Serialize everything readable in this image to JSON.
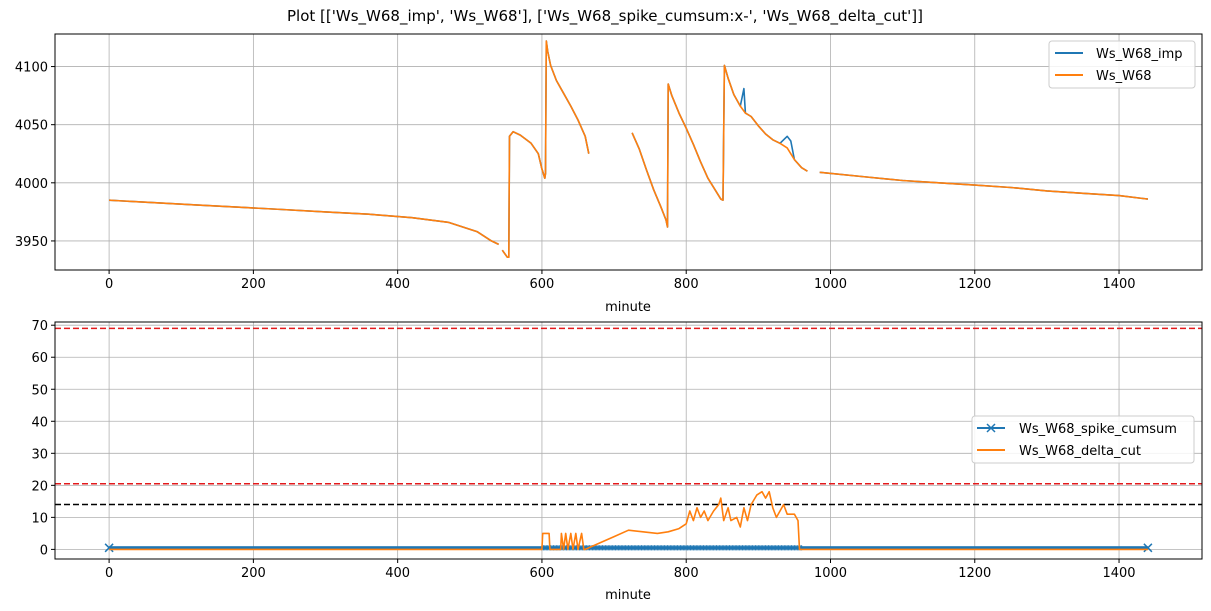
{
  "title": "Plot [['Ws_W68_imp', 'Ws_W68'], ['Ws_W68_spike_cumsum:x-', 'Ws_W68_delta_cut']]",
  "colors": {
    "blue": "#1f77b4",
    "orange": "#ff7f0e",
    "red": "#e31a1c",
    "black": "#000000",
    "grid": "#b0b0b0"
  },
  "chart_data": [
    {
      "type": "line",
      "xlabel": "minute",
      "ylabel": "",
      "xlim": [
        -75,
        1515
      ],
      "ylim": [
        3925,
        4128
      ],
      "grid": true,
      "legend": "top-right",
      "x_ticks": [
        0,
        200,
        400,
        600,
        800,
        1000,
        1200,
        1400
      ],
      "y_ticks": [
        3950,
        4000,
        4050,
        4100
      ],
      "series": [
        {
          "name": "Ws_W68_imp",
          "color": "#1f77b4",
          "segments": [
            [
              [
                0,
                3985
              ],
              [
                60,
                3983
              ],
              [
                120,
                3981
              ],
              [
                180,
                3979
              ],
              [
                240,
                3977
              ],
              [
                300,
                3975
              ],
              [
                360,
                3973
              ],
              [
                420,
                3970
              ],
              [
                470,
                3966
              ],
              [
                510,
                3958
              ],
              [
                530,
                3950
              ],
              [
                540,
                3947
              ]
            ],
            [
              [
                545,
                3942
              ],
              [
                552,
                3936
              ],
              [
                554,
                3936
              ],
              [
                555,
                4040
              ],
              [
                560,
                4044
              ],
              [
                570,
                4041
              ],
              [
                585,
                4034
              ],
              [
                595,
                4025
              ],
              [
                600,
                4012
              ],
              [
                604,
                4004
              ],
              [
                605,
                4008
              ],
              [
                606,
                4122
              ],
              [
                608,
                4113
              ],
              [
                612,
                4101
              ],
              [
                620,
                4088
              ],
              [
                630,
                4077
              ],
              [
                640,
                4066
              ],
              [
                650,
                4054
              ],
              [
                660,
                4040
              ],
              [
                665,
                4025
              ]
            ],
            [
              [
                725,
                4043
              ],
              [
                735,
                4029
              ],
              [
                745,
                4011
              ],
              [
                755,
                3994
              ],
              [
                765,
                3979
              ],
              [
                772,
                3968
              ],
              [
                774,
                3962
              ],
              [
                775,
                4085
              ],
              [
                780,
                4075
              ],
              [
                790,
                4060
              ],
              [
                800,
                4047
              ],
              [
                810,
                4033
              ],
              [
                820,
                4018
              ],
              [
                830,
                4004
              ],
              [
                840,
                3994
              ],
              [
                848,
                3986
              ],
              [
                851,
                3985
              ],
              [
                853,
                4101
              ],
              [
                858,
                4090
              ],
              [
                866,
                4076
              ],
              [
                875,
                4066
              ],
              [
                880,
                4081
              ],
              [
                882,
                4060
              ],
              [
                890,
                4057
              ],
              [
                900,
                4049
              ],
              [
                910,
                4042
              ],
              [
                920,
                4037
              ],
              [
                930,
                4034
              ],
              [
                940,
                4040
              ],
              [
                945,
                4036
              ],
              [
                950,
                4020
              ],
              [
                960,
                4013
              ],
              [
                968,
                4010
              ]
            ],
            [
              [
                985,
                4009
              ],
              [
                1050,
                4005
              ],
              [
                1100,
                4002
              ],
              [
                1150,
                4000
              ],
              [
                1200,
                3998
              ],
              [
                1250,
                3996
              ],
              [
                1300,
                3993
              ],
              [
                1350,
                3991
              ],
              [
                1400,
                3989
              ],
              [
                1440,
                3986
              ]
            ]
          ]
        },
        {
          "name": "Ws_W68",
          "color": "#ff7f0e",
          "segments": [
            [
              [
                0,
                3985
              ],
              [
                60,
                3983
              ],
              [
                120,
                3981
              ],
              [
                180,
                3979
              ],
              [
                240,
                3977
              ],
              [
                300,
                3975
              ],
              [
                360,
                3973
              ],
              [
                420,
                3970
              ],
              [
                470,
                3966
              ],
              [
                510,
                3958
              ],
              [
                530,
                3950
              ],
              [
                540,
                3947
              ]
            ],
            [
              [
                545,
                3942
              ],
              [
                552,
                3936
              ],
              [
                554,
                3936
              ],
              [
                555,
                4040
              ],
              [
                560,
                4044
              ],
              [
                570,
                4041
              ],
              [
                585,
                4034
              ],
              [
                595,
                4025
              ],
              [
                600,
                4012
              ],
              [
                604,
                4004
              ],
              [
                605,
                4008
              ],
              [
                606,
                4122
              ],
              [
                608,
                4113
              ],
              [
                612,
                4101
              ],
              [
                620,
                4088
              ],
              [
                630,
                4077
              ],
              [
                640,
                4066
              ],
              [
                650,
                4054
              ],
              [
                660,
                4040
              ],
              [
                665,
                4025
              ]
            ],
            [
              [
                725,
                4043
              ],
              [
                735,
                4029
              ],
              [
                745,
                4011
              ],
              [
                755,
                3994
              ],
              [
                765,
                3979
              ],
              [
                772,
                3968
              ],
              [
                774,
                3962
              ],
              [
                775,
                4085
              ],
              [
                780,
                4075
              ],
              [
                790,
                4060
              ],
              [
                800,
                4047
              ],
              [
                810,
                4033
              ],
              [
                820,
                4018
              ],
              [
                830,
                4004
              ],
              [
                840,
                3994
              ],
              [
                848,
                3986
              ],
              [
                851,
                3985
              ],
              [
                853,
                4101
              ],
              [
                858,
                4090
              ],
              [
                866,
                4076
              ],
              [
                875,
                4066
              ],
              [
                882,
                4060
              ],
              [
                890,
                4057
              ],
              [
                900,
                4049
              ],
              [
                910,
                4042
              ],
              [
                920,
                4037
              ],
              [
                930,
                4034
              ],
              [
                940,
                4030
              ],
              [
                950,
                4020
              ],
              [
                960,
                4013
              ],
              [
                968,
                4010
              ]
            ],
            [
              [
                985,
                4009
              ],
              [
                1050,
                4005
              ],
              [
                1100,
                4002
              ],
              [
                1150,
                4000
              ],
              [
                1200,
                3998
              ],
              [
                1250,
                3996
              ],
              [
                1300,
                3993
              ],
              [
                1350,
                3991
              ],
              [
                1400,
                3989
              ],
              [
                1440,
                3986
              ]
            ]
          ]
        }
      ]
    },
    {
      "type": "line",
      "xlabel": "minute",
      "ylabel": "",
      "xlim": [
        -75,
        1515
      ],
      "ylim": [
        -3,
        71
      ],
      "grid": true,
      "legend": "center-right",
      "x_ticks": [
        0,
        200,
        400,
        600,
        800,
        1000,
        1200,
        1400
      ],
      "y_ticks": [
        0,
        10,
        20,
        30,
        40,
        50,
        60,
        70
      ],
      "hlines": [
        {
          "y": 69,
          "color": "#e31a1c",
          "style": "dashed"
        },
        {
          "y": 20.5,
          "color": "#e31a1c",
          "style": "dashed"
        },
        {
          "y": 14,
          "color": "#000000",
          "style": "dashed"
        }
      ],
      "series": [
        {
          "name": "Ws_W68_spike_cumsum",
          "color": "#1f77b4",
          "marker": "x",
          "x_range": [
            0,
            1440
          ],
          "values": [
            0,
            1
          ],
          "note_dense": [
            600,
            960
          ]
        },
        {
          "name": "Ws_W68_delta_cut",
          "color": "#ff7f0e",
          "points": [
            [
              0,
              0
            ],
            [
              600,
              0
            ],
            [
              601,
              5
            ],
            [
              610,
              5
            ],
            [
              611,
              0
            ],
            [
              626,
              0
            ],
            [
              627,
              5
            ],
            [
              630,
              0
            ],
            [
              633,
              5
            ],
            [
              636,
              0
            ],
            [
              640,
              5
            ],
            [
              643,
              0
            ],
            [
              647,
              5
            ],
            [
              650,
              0
            ],
            [
              655,
              5
            ],
            [
              658,
              0
            ],
            [
              660,
              0
            ],
            [
              680,
              2
            ],
            [
              700,
              4
            ],
            [
              720,
              6
            ],
            [
              740,
              5.5
            ],
            [
              760,
              5
            ],
            [
              775,
              5.5
            ],
            [
              790,
              6.5
            ],
            [
              800,
              8
            ],
            [
              805,
              12
            ],
            [
              810,
              9
            ],
            [
              815,
              13
            ],
            [
              820,
              10
            ],
            [
              825,
              12
            ],
            [
              830,
              9
            ],
            [
              838,
              12
            ],
            [
              845,
              14
            ],
            [
              848,
              16
            ],
            [
              852,
              9
            ],
            [
              858,
              13
            ],
            [
              862,
              9
            ],
            [
              870,
              10
            ],
            [
              875,
              7
            ],
            [
              880,
              13
            ],
            [
              885,
              9
            ],
            [
              890,
              14
            ],
            [
              898,
              17
            ],
            [
              905,
              18
            ],
            [
              910,
              16
            ],
            [
              915,
              18
            ],
            [
              920,
              13
            ],
            [
              925,
              10
            ],
            [
              930,
              12
            ],
            [
              935,
              14
            ],
            [
              940,
              11
            ],
            [
              950,
              11
            ],
            [
              955,
              9
            ],
            [
              957,
              0
            ],
            [
              1440,
              0
            ]
          ]
        }
      ]
    }
  ]
}
